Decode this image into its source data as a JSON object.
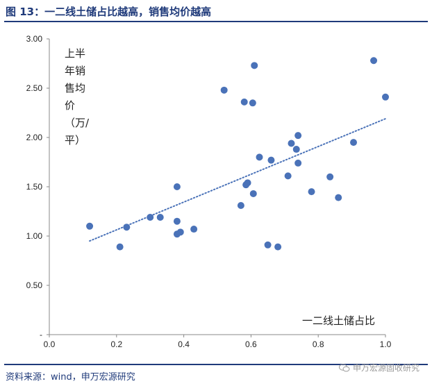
{
  "figure_title": "图 13：一二线土储占比越高，销售均价越高",
  "source_text": "资料来源：wind，申万宏源研究",
  "watermark_text": "申万宏源固收研究",
  "colors": {
    "brand": "#1f3a7a",
    "points": "#4a72b8",
    "trend": "#4a72b8"
  },
  "chart_data": {
    "type": "scatter",
    "ylabel_lines": [
      "上半",
      "年销",
      "售均",
      "价",
      "（万/",
      "平）"
    ],
    "xlabel": "一二线土储占比",
    "xlim": [
      0,
      1.0
    ],
    "ylim": [
      0,
      3.0
    ],
    "xticks": [
      "0.0",
      "0.2",
      "0.4",
      "0.6",
      "0.8",
      "1.0"
    ],
    "yticks": [
      "-",
      "0.50",
      "1.00",
      "1.50",
      "2.00",
      "2.50",
      "3.00"
    ],
    "grid": false,
    "points": [
      [
        0.12,
        1.1
      ],
      [
        0.21,
        0.89
      ],
      [
        0.23,
        1.09
      ],
      [
        0.3,
        1.19
      ],
      [
        0.33,
        1.19
      ],
      [
        0.38,
        1.5
      ],
      [
        0.38,
        1.15
      ],
      [
        0.38,
        1.02
      ],
      [
        0.39,
        1.04
      ],
      [
        0.43,
        1.07
      ],
      [
        0.52,
        2.48
      ],
      [
        0.57,
        1.31
      ],
      [
        0.58,
        2.36
      ],
      [
        0.585,
        1.52
      ],
      [
        0.59,
        1.54
      ],
      [
        0.605,
        2.35
      ],
      [
        0.607,
        1.43
      ],
      [
        0.61,
        2.73
      ],
      [
        0.625,
        1.8
      ],
      [
        0.65,
        0.91
      ],
      [
        0.66,
        1.77
      ],
      [
        0.68,
        0.89
      ],
      [
        0.71,
        1.61
      ],
      [
        0.72,
        1.94
      ],
      [
        0.735,
        1.88
      ],
      [
        0.74,
        2.02
      ],
      [
        0.74,
        1.74
      ],
      [
        0.78,
        1.45
      ],
      [
        0.835,
        1.6
      ],
      [
        0.86,
        1.39
      ],
      [
        0.905,
        1.95
      ],
      [
        0.965,
        2.78
      ],
      [
        1.0,
        2.41
      ]
    ],
    "trendline": {
      "x": [
        0.12,
        1.0
      ],
      "y": [
        0.95,
        2.19
      ],
      "style": "dotted"
    }
  }
}
